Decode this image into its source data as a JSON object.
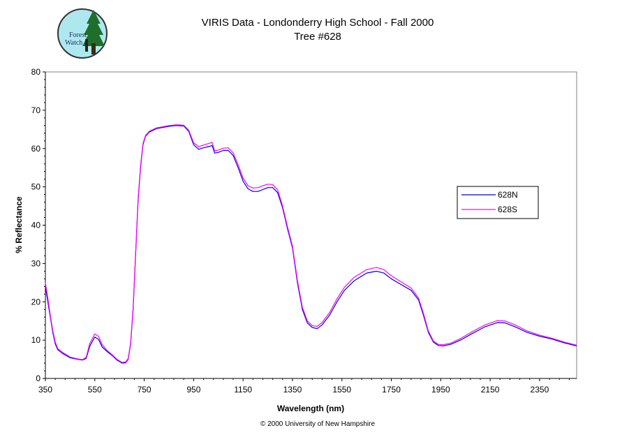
{
  "logo": {
    "text_line1": "Forest",
    "text_line2": "Watch",
    "colors": {
      "sky": "#aee8ee",
      "tree": "#1f6e2c",
      "border": "#333333"
    }
  },
  "chart_data": {
    "type": "line",
    "title": "VIRIS Data - Londonderry High School - Fall 2000",
    "subtitle": "Tree #628",
    "xlabel": "Wavelength (nm)",
    "ylabel": "% Reflectance",
    "xlim": [
      350,
      2500
    ],
    "ylim": [
      0,
      80
    ],
    "xticks": [
      350,
      550,
      750,
      950,
      1150,
      1350,
      1550,
      1750,
      1950,
      2150,
      2350
    ],
    "yticks": [
      0,
      10,
      20,
      30,
      40,
      50,
      60,
      70,
      80
    ],
    "grid": false,
    "legend_position": "right",
    "series": [
      {
        "name": "628N",
        "color": "#0000cc",
        "points": [
          [
            350,
            24
          ],
          [
            360,
            20
          ],
          [
            370,
            16
          ],
          [
            380,
            12
          ],
          [
            390,
            9
          ],
          [
            400,
            7.5
          ],
          [
            420,
            6.5
          ],
          [
            450,
            5.4
          ],
          [
            480,
            5.0
          ],
          [
            500,
            4.8
          ],
          [
            515,
            5.2
          ],
          [
            530,
            8.5
          ],
          [
            550,
            10.8
          ],
          [
            565,
            10.2
          ],
          [
            580,
            8.2
          ],
          [
            600,
            7.0
          ],
          [
            620,
            6.0
          ],
          [
            640,
            4.8
          ],
          [
            660,
            4.0
          ],
          [
            675,
            4.1
          ],
          [
            685,
            5.0
          ],
          [
            695,
            9
          ],
          [
            705,
            18
          ],
          [
            715,
            32
          ],
          [
            725,
            46
          ],
          [
            735,
            55
          ],
          [
            745,
            61
          ],
          [
            755,
            63.2
          ],
          [
            770,
            64.3
          ],
          [
            800,
            65.2
          ],
          [
            850,
            65.8
          ],
          [
            880,
            66.0
          ],
          [
            910,
            65.9
          ],
          [
            930,
            64.5
          ],
          [
            950,
            61.0
          ],
          [
            970,
            59.8
          ],
          [
            990,
            60.2
          ],
          [
            1010,
            60.5
          ],
          [
            1025,
            60.8
          ],
          [
            1035,
            58.8
          ],
          [
            1050,
            59.0
          ],
          [
            1070,
            59.5
          ],
          [
            1090,
            59.5
          ],
          [
            1110,
            58.2
          ],
          [
            1130,
            55.0
          ],
          [
            1150,
            51.5
          ],
          [
            1170,
            49.5
          ],
          [
            1190,
            48.8
          ],
          [
            1210,
            48.8
          ],
          [
            1230,
            49.3
          ],
          [
            1250,
            49.8
          ],
          [
            1270,
            49.8
          ],
          [
            1290,
            48.5
          ],
          [
            1310,
            44.5
          ],
          [
            1330,
            39.0
          ],
          [
            1350,
            34.0
          ],
          [
            1370,
            25.0
          ],
          [
            1390,
            18.0
          ],
          [
            1410,
            14.5
          ],
          [
            1430,
            13.3
          ],
          [
            1450,
            13.0
          ],
          [
            1470,
            14.0
          ],
          [
            1500,
            16.5
          ],
          [
            1530,
            20.0
          ],
          [
            1560,
            23.0
          ],
          [
            1600,
            25.5
          ],
          [
            1650,
            27.5
          ],
          [
            1690,
            28.0
          ],
          [
            1720,
            27.5
          ],
          [
            1750,
            26.0
          ],
          [
            1790,
            24.5
          ],
          [
            1830,
            23.0
          ],
          [
            1860,
            20.5
          ],
          [
            1880,
            16.5
          ],
          [
            1900,
            12.0
          ],
          [
            1920,
            9.5
          ],
          [
            1940,
            8.6
          ],
          [
            1960,
            8.5
          ],
          [
            1990,
            8.9
          ],
          [
            2030,
            10.0
          ],
          [
            2080,
            11.8
          ],
          [
            2130,
            13.5
          ],
          [
            2180,
            14.6
          ],
          [
            2210,
            14.5
          ],
          [
            2250,
            13.5
          ],
          [
            2300,
            12.0
          ],
          [
            2350,
            11.0
          ],
          [
            2400,
            10.3
          ],
          [
            2450,
            9.3
          ],
          [
            2500,
            8.5
          ]
        ]
      },
      {
        "name": "628S",
        "color": "#ff00ff",
        "points": [
          [
            350,
            25
          ],
          [
            360,
            21
          ],
          [
            370,
            16.5
          ],
          [
            380,
            12.5
          ],
          [
            390,
            9.5
          ],
          [
            400,
            7.8
          ],
          [
            420,
            6.8
          ],
          [
            450,
            5.6
          ],
          [
            480,
            5.1
          ],
          [
            500,
            4.9
          ],
          [
            515,
            5.5
          ],
          [
            530,
            9.2
          ],
          [
            550,
            11.6
          ],
          [
            565,
            11.0
          ],
          [
            580,
            8.8
          ],
          [
            600,
            7.3
          ],
          [
            620,
            6.2
          ],
          [
            640,
            5.0
          ],
          [
            660,
            4.2
          ],
          [
            675,
            4.3
          ],
          [
            685,
            5.2
          ],
          [
            695,
            9.3
          ],
          [
            705,
            18.5
          ],
          [
            715,
            32.5
          ],
          [
            725,
            46.5
          ],
          [
            735,
            55.5
          ],
          [
            745,
            61.3
          ],
          [
            755,
            63.4
          ],
          [
            770,
            64.5
          ],
          [
            800,
            65.4
          ],
          [
            850,
            66.0
          ],
          [
            880,
            66.2
          ],
          [
            910,
            66.1
          ],
          [
            930,
            64.8
          ],
          [
            950,
            61.5
          ],
          [
            970,
            60.5
          ],
          [
            990,
            60.9
          ],
          [
            1010,
            61.3
          ],
          [
            1025,
            61.6
          ],
          [
            1035,
            59.4
          ],
          [
            1050,
            59.6
          ],
          [
            1070,
            60.1
          ],
          [
            1090,
            60.2
          ],
          [
            1110,
            58.9
          ],
          [
            1130,
            55.8
          ],
          [
            1150,
            52.3
          ],
          [
            1170,
            50.3
          ],
          [
            1190,
            49.7
          ],
          [
            1210,
            49.8
          ],
          [
            1230,
            50.3
          ],
          [
            1250,
            50.7
          ],
          [
            1270,
            50.6
          ],
          [
            1290,
            49.2
          ],
          [
            1310,
            45.0
          ],
          [
            1330,
            39.5
          ],
          [
            1350,
            34.5
          ],
          [
            1370,
            25.6
          ],
          [
            1390,
            18.6
          ],
          [
            1410,
            15.0
          ],
          [
            1430,
            13.8
          ],
          [
            1450,
            13.6
          ],
          [
            1470,
            14.6
          ],
          [
            1500,
            17.2
          ],
          [
            1530,
            20.8
          ],
          [
            1560,
            23.8
          ],
          [
            1600,
            26.4
          ],
          [
            1650,
            28.4
          ],
          [
            1690,
            29.0
          ],
          [
            1720,
            28.4
          ],
          [
            1750,
            26.8
          ],
          [
            1790,
            25.2
          ],
          [
            1830,
            23.6
          ],
          [
            1860,
            21.0
          ],
          [
            1880,
            17.0
          ],
          [
            1900,
            12.4
          ],
          [
            1920,
            9.8
          ],
          [
            1940,
            8.9
          ],
          [
            1960,
            8.8
          ],
          [
            1990,
            9.2
          ],
          [
            2030,
            10.4
          ],
          [
            2080,
            12.3
          ],
          [
            2130,
            14.0
          ],
          [
            2180,
            15.1
          ],
          [
            2210,
            15.0
          ],
          [
            2250,
            14.0
          ],
          [
            2300,
            12.4
          ],
          [
            2350,
            11.3
          ],
          [
            2400,
            10.5
          ],
          [
            2450,
            9.5
          ],
          [
            2500,
            8.7
          ]
        ]
      }
    ]
  },
  "footer": {
    "copyright": "© 2000 University of New Hampshire"
  }
}
